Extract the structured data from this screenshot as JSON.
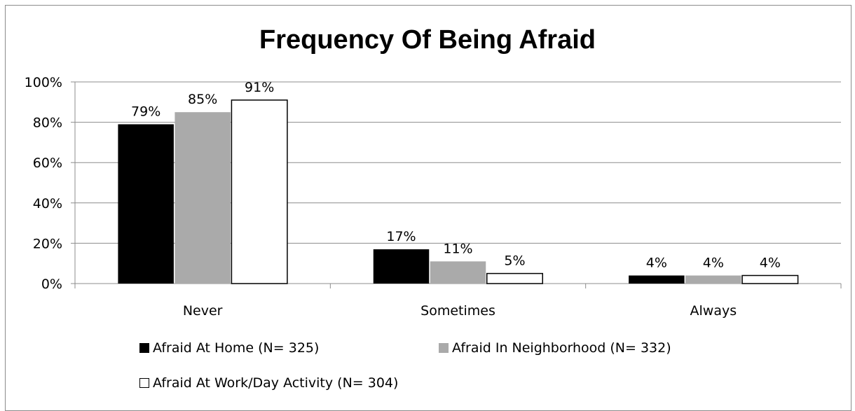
{
  "chart_data": {
    "type": "bar",
    "title": "Frequency Of Being Afraid",
    "xlabel": "",
    "ylabel": "",
    "categories": [
      "Never",
      "Sometimes",
      "Always"
    ],
    "ylim": [
      0,
      100
    ],
    "yticks": [
      "0%",
      "20%",
      "40%",
      "60%",
      "80%",
      "100%"
    ],
    "grid": true,
    "legend_position": "bottom",
    "series": [
      {
        "name": "Afraid At Home (N= 325)",
        "values": [
          79,
          17,
          4
        ],
        "labels": [
          "79%",
          "17%",
          "4%"
        ],
        "color": "#000000"
      },
      {
        "name": "Afraid In Neighborhood (N= 332)",
        "values": [
          85,
          11,
          4
        ],
        "labels": [
          "85%",
          "11%",
          "4%"
        ],
        "color": "#aaaaaa"
      },
      {
        "name": "Afraid At Work/Day Activity (N= 304)",
        "values": [
          91,
          5,
          4
        ],
        "labels": [
          "91%",
          "5%",
          "4%"
        ],
        "color": "#ffffff"
      }
    ]
  }
}
